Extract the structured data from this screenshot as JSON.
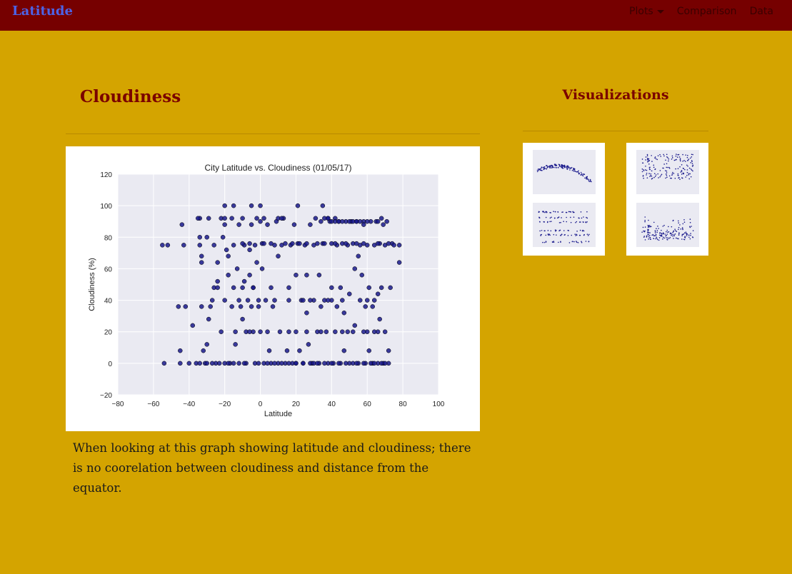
{
  "navbar": {
    "brand": "Latitude",
    "items": [
      {
        "label": "Plots",
        "dropdown": true
      },
      {
        "label": "Comparison",
        "dropdown": false
      },
      {
        "label": "Data",
        "dropdown": false
      }
    ]
  },
  "main": {
    "title": "Cloudiness",
    "description": "When looking at this graph showing latitude and cloudiness; there is no coorelation between cloudiness and distance from the equator."
  },
  "sidebar": {
    "title": "Visualizations",
    "thumbnails": [
      {
        "name": "temperature-plot"
      },
      {
        "name": "humidity-plot"
      },
      {
        "name": "cloudiness-plot"
      },
      {
        "name": "wind-speed-plot"
      }
    ]
  },
  "colors": {
    "background": "#d4a400",
    "navbar": "#760000",
    "brand": "#4d63e6",
    "heading": "#7a0000",
    "plot_bg": "#eaeaf2",
    "marker": "#1a1a8c"
  },
  "chart_data": {
    "type": "scatter",
    "title": "City Latitude vs. Cloudiness (01/05/17)",
    "xlabel": "Latitude",
    "ylabel": "Cloudiness (%)",
    "xlim": [
      -80,
      100
    ],
    "ylim": [
      -20,
      120
    ],
    "xticks": [
      "−80",
      "−60",
      "−40",
      "−20",
      "0",
      "20",
      "40",
      "60",
      "80",
      "100"
    ],
    "yticks": [
      "−20",
      "0",
      "20",
      "40",
      "60",
      "80",
      "100",
      "120"
    ],
    "grid": true,
    "points": [
      [
        -54,
        0
      ],
      [
        -52,
        75
      ],
      [
        -55,
        75
      ],
      [
        -45,
        0
      ],
      [
        -45,
        8
      ],
      [
        -44,
        88
      ],
      [
        -46,
        36
      ],
      [
        -42,
        36
      ],
      [
        -43,
        75
      ],
      [
        -40,
        0
      ],
      [
        -38,
        24
      ],
      [
        -36,
        0
      ],
      [
        -34,
        0
      ],
      [
        -34,
        92
      ],
      [
        -34,
        80
      ],
      [
        -34,
        75
      ],
      [
        -33,
        36
      ],
      [
        -33,
        68
      ],
      [
        -33,
        64
      ],
      [
        -32,
        8
      ],
      [
        -31,
        0
      ],
      [
        -30,
        12
      ],
      [
        -30,
        80
      ],
      [
        -29,
        28
      ],
      [
        -29,
        92
      ],
      [
        -28,
        36
      ],
      [
        -27,
        40
      ],
      [
        -26,
        48
      ],
      [
        -26,
        75
      ],
      [
        -25,
        0
      ],
      [
        -24,
        52
      ],
      [
        -24,
        64
      ],
      [
        -23,
        0
      ],
      [
        -22,
        20
      ],
      [
        -22,
        92
      ],
      [
        -21,
        80
      ],
      [
        -20,
        0
      ],
      [
        -20,
        40
      ],
      [
        -20,
        88
      ],
      [
        -19,
        72
      ],
      [
        -18,
        56
      ],
      [
        -18,
        68
      ],
      [
        -17,
        0
      ],
      [
        -16,
        36
      ],
      [
        -16,
        92
      ],
      [
        -15,
        48
      ],
      [
        -15,
        75
      ],
      [
        -14,
        20
      ],
      [
        -14,
        12
      ],
      [
        -13,
        60
      ],
      [
        -12,
        40
      ],
      [
        -12,
        88
      ],
      [
        -11,
        36
      ],
      [
        -10,
        28
      ],
      [
        -10,
        92
      ],
      [
        -9,
        52
      ],
      [
        -9,
        75
      ],
      [
        -8,
        20
      ],
      [
        -8,
        0
      ],
      [
        -7,
        40
      ],
      [
        -6,
        56
      ],
      [
        -6,
        72
      ],
      [
        -5,
        36
      ],
      [
        -5,
        88
      ],
      [
        -4,
        20
      ],
      [
        -4,
        48
      ],
      [
        -3,
        0
      ],
      [
        -3,
        75
      ],
      [
        -2,
        92
      ],
      [
        -2,
        64
      ],
      [
        -1,
        36
      ],
      [
        -1,
        40
      ],
      [
        0,
        20
      ],
      [
        0,
        90
      ],
      [
        1,
        60
      ],
      [
        1,
        76
      ],
      [
        2,
        0
      ],
      [
        2,
        92
      ],
      [
        3,
        40
      ],
      [
        4,
        88
      ],
      [
        5,
        8
      ],
      [
        6,
        0
      ],
      [
        7,
        36
      ],
      [
        8,
        75
      ],
      [
        9,
        90
      ],
      [
        10,
        0
      ],
      [
        10,
        68
      ],
      [
        11,
        20
      ],
      [
        12,
        75
      ],
      [
        13,
        92
      ],
      [
        14,
        0
      ],
      [
        15,
        8
      ],
      [
        16,
        48
      ],
      [
        17,
        75
      ],
      [
        18,
        0
      ],
      [
        19,
        88
      ],
      [
        20,
        20
      ],
      [
        20,
        0
      ],
      [
        21,
        100
      ],
      [
        21,
        76
      ],
      [
        22,
        8
      ],
      [
        23,
        40
      ],
      [
        24,
        0
      ],
      [
        25,
        75
      ],
      [
        26,
        32
      ],
      [
        27,
        12
      ],
      [
        28,
        88
      ],
      [
        29,
        0
      ],
      [
        30,
        40
      ],
      [
        30,
        75
      ],
      [
        31,
        92
      ],
      [
        32,
        20
      ],
      [
        33,
        0
      ],
      [
        33,
        56
      ],
      [
        34,
        36
      ],
      [
        34,
        90
      ],
      [
        35,
        76
      ],
      [
        35,
        100
      ],
      [
        36,
        40
      ],
      [
        37,
        20
      ],
      [
        38,
        0
      ],
      [
        38,
        92
      ],
      [
        39,
        90
      ],
      [
        40,
        76
      ],
      [
        40,
        40
      ],
      [
        41,
        0
      ],
      [
        42,
        20
      ],
      [
        42,
        92
      ],
      [
        43,
        36
      ],
      [
        43,
        75
      ],
      [
        44,
        90
      ],
      [
        45,
        0
      ],
      [
        45,
        48
      ],
      [
        46,
        76
      ],
      [
        46,
        40
      ],
      [
        47,
        8
      ],
      [
        47,
        32
      ],
      [
        48,
        90
      ],
      [
        49,
        20
      ],
      [
        49,
        75
      ],
      [
        50,
        0
      ],
      [
        50,
        44
      ],
      [
        51,
        90
      ],
      [
        52,
        76
      ],
      [
        53,
        24
      ],
      [
        53,
        60
      ],
      [
        54,
        90
      ],
      [
        55,
        0
      ],
      [
        55,
        68
      ],
      [
        56,
        40
      ],
      [
        56,
        75
      ],
      [
        57,
        56
      ],
      [
        58,
        90
      ],
      [
        59,
        0
      ],
      [
        59,
        36
      ],
      [
        60,
        20
      ],
      [
        60,
        75
      ],
      [
        61,
        48
      ],
      [
        61,
        8
      ],
      [
        62,
        90
      ],
      [
        63,
        0
      ],
      [
        63,
        36
      ],
      [
        64,
        20
      ],
      [
        64,
        75
      ],
      [
        65,
        90
      ],
      [
        66,
        44
      ],
      [
        66,
        0
      ],
      [
        67,
        28
      ],
      [
        67,
        76
      ],
      [
        68,
        48
      ],
      [
        69,
        0
      ],
      [
        69,
        88
      ],
      [
        70,
        20
      ],
      [
        70,
        75
      ],
      [
        71,
        90
      ],
      [
        72,
        8
      ],
      [
        72,
        0
      ],
      [
        73,
        48
      ],
      [
        74,
        76
      ],
      [
        75,
        75
      ],
      [
        78,
        75
      ],
      [
        78,
        64
      ],
      [
        -35,
        92
      ],
      [
        -20,
        92
      ],
      [
        10,
        92
      ],
      [
        -15,
        100
      ],
      [
        -20,
        100
      ],
      [
        0,
        100
      ],
      [
        -5,
        100
      ],
      [
        12,
        92
      ],
      [
        36,
        92
      ],
      [
        38,
        92
      ],
      [
        40,
        90
      ],
      [
        42,
        90
      ],
      [
        44,
        90
      ],
      [
        46,
        90
      ],
      [
        50,
        90
      ],
      [
        52,
        90
      ],
      [
        54,
        90
      ],
      [
        56,
        90
      ],
      [
        58,
        88
      ],
      [
        60,
        90
      ],
      [
        66,
        90
      ],
      [
        68,
        92
      ],
      [
        -30,
        0
      ],
      [
        -27,
        0
      ],
      [
        -18,
        0
      ],
      [
        -15,
        0
      ],
      [
        -12,
        0
      ],
      [
        -9,
        0
      ],
      [
        -1,
        0
      ],
      [
        4,
        0
      ],
      [
        8,
        0
      ],
      [
        12,
        0
      ],
      [
        16,
        0
      ],
      [
        20,
        0
      ],
      [
        24,
        0
      ],
      [
        28,
        0
      ],
      [
        30,
        0
      ],
      [
        32,
        0
      ],
      [
        36,
        0
      ],
      [
        40,
        0
      ],
      [
        44,
        0
      ],
      [
        48,
        0
      ],
      [
        52,
        0
      ],
      [
        54,
        0
      ],
      [
        58,
        0
      ],
      [
        62,
        0
      ],
      [
        64,
        0
      ],
      [
        68,
        0
      ],
      [
        70,
        0
      ],
      [
        -10,
        76
      ],
      [
        -6,
        76
      ],
      [
        2,
        76
      ],
      [
        6,
        76
      ],
      [
        14,
        76
      ],
      [
        18,
        76
      ],
      [
        22,
        76
      ],
      [
        26,
        76
      ],
      [
        32,
        76
      ],
      [
        36,
        76
      ],
      [
        42,
        76
      ],
      [
        48,
        76
      ],
      [
        54,
        76
      ],
      [
        58,
        76
      ],
      [
        66,
        76
      ],
      [
        72,
        76
      ],
      [
        8,
        40
      ],
      [
        16,
        40
      ],
      [
        24,
        40
      ],
      [
        28,
        40
      ],
      [
        38,
        40
      ],
      [
        60,
        40
      ],
      [
        64,
        40
      ],
      [
        -6,
        20
      ],
      [
        4,
        20
      ],
      [
        16,
        20
      ],
      [
        26,
        20
      ],
      [
        34,
        20
      ],
      [
        46,
        20
      ],
      [
        52,
        20
      ],
      [
        58,
        20
      ],
      [
        66,
        20
      ],
      [
        -24,
        48
      ],
      [
        -10,
        48
      ],
      [
        -4,
        48
      ],
      [
        6,
        48
      ],
      [
        20,
        56
      ],
      [
        26,
        56
      ],
      [
        40,
        48
      ]
    ]
  }
}
